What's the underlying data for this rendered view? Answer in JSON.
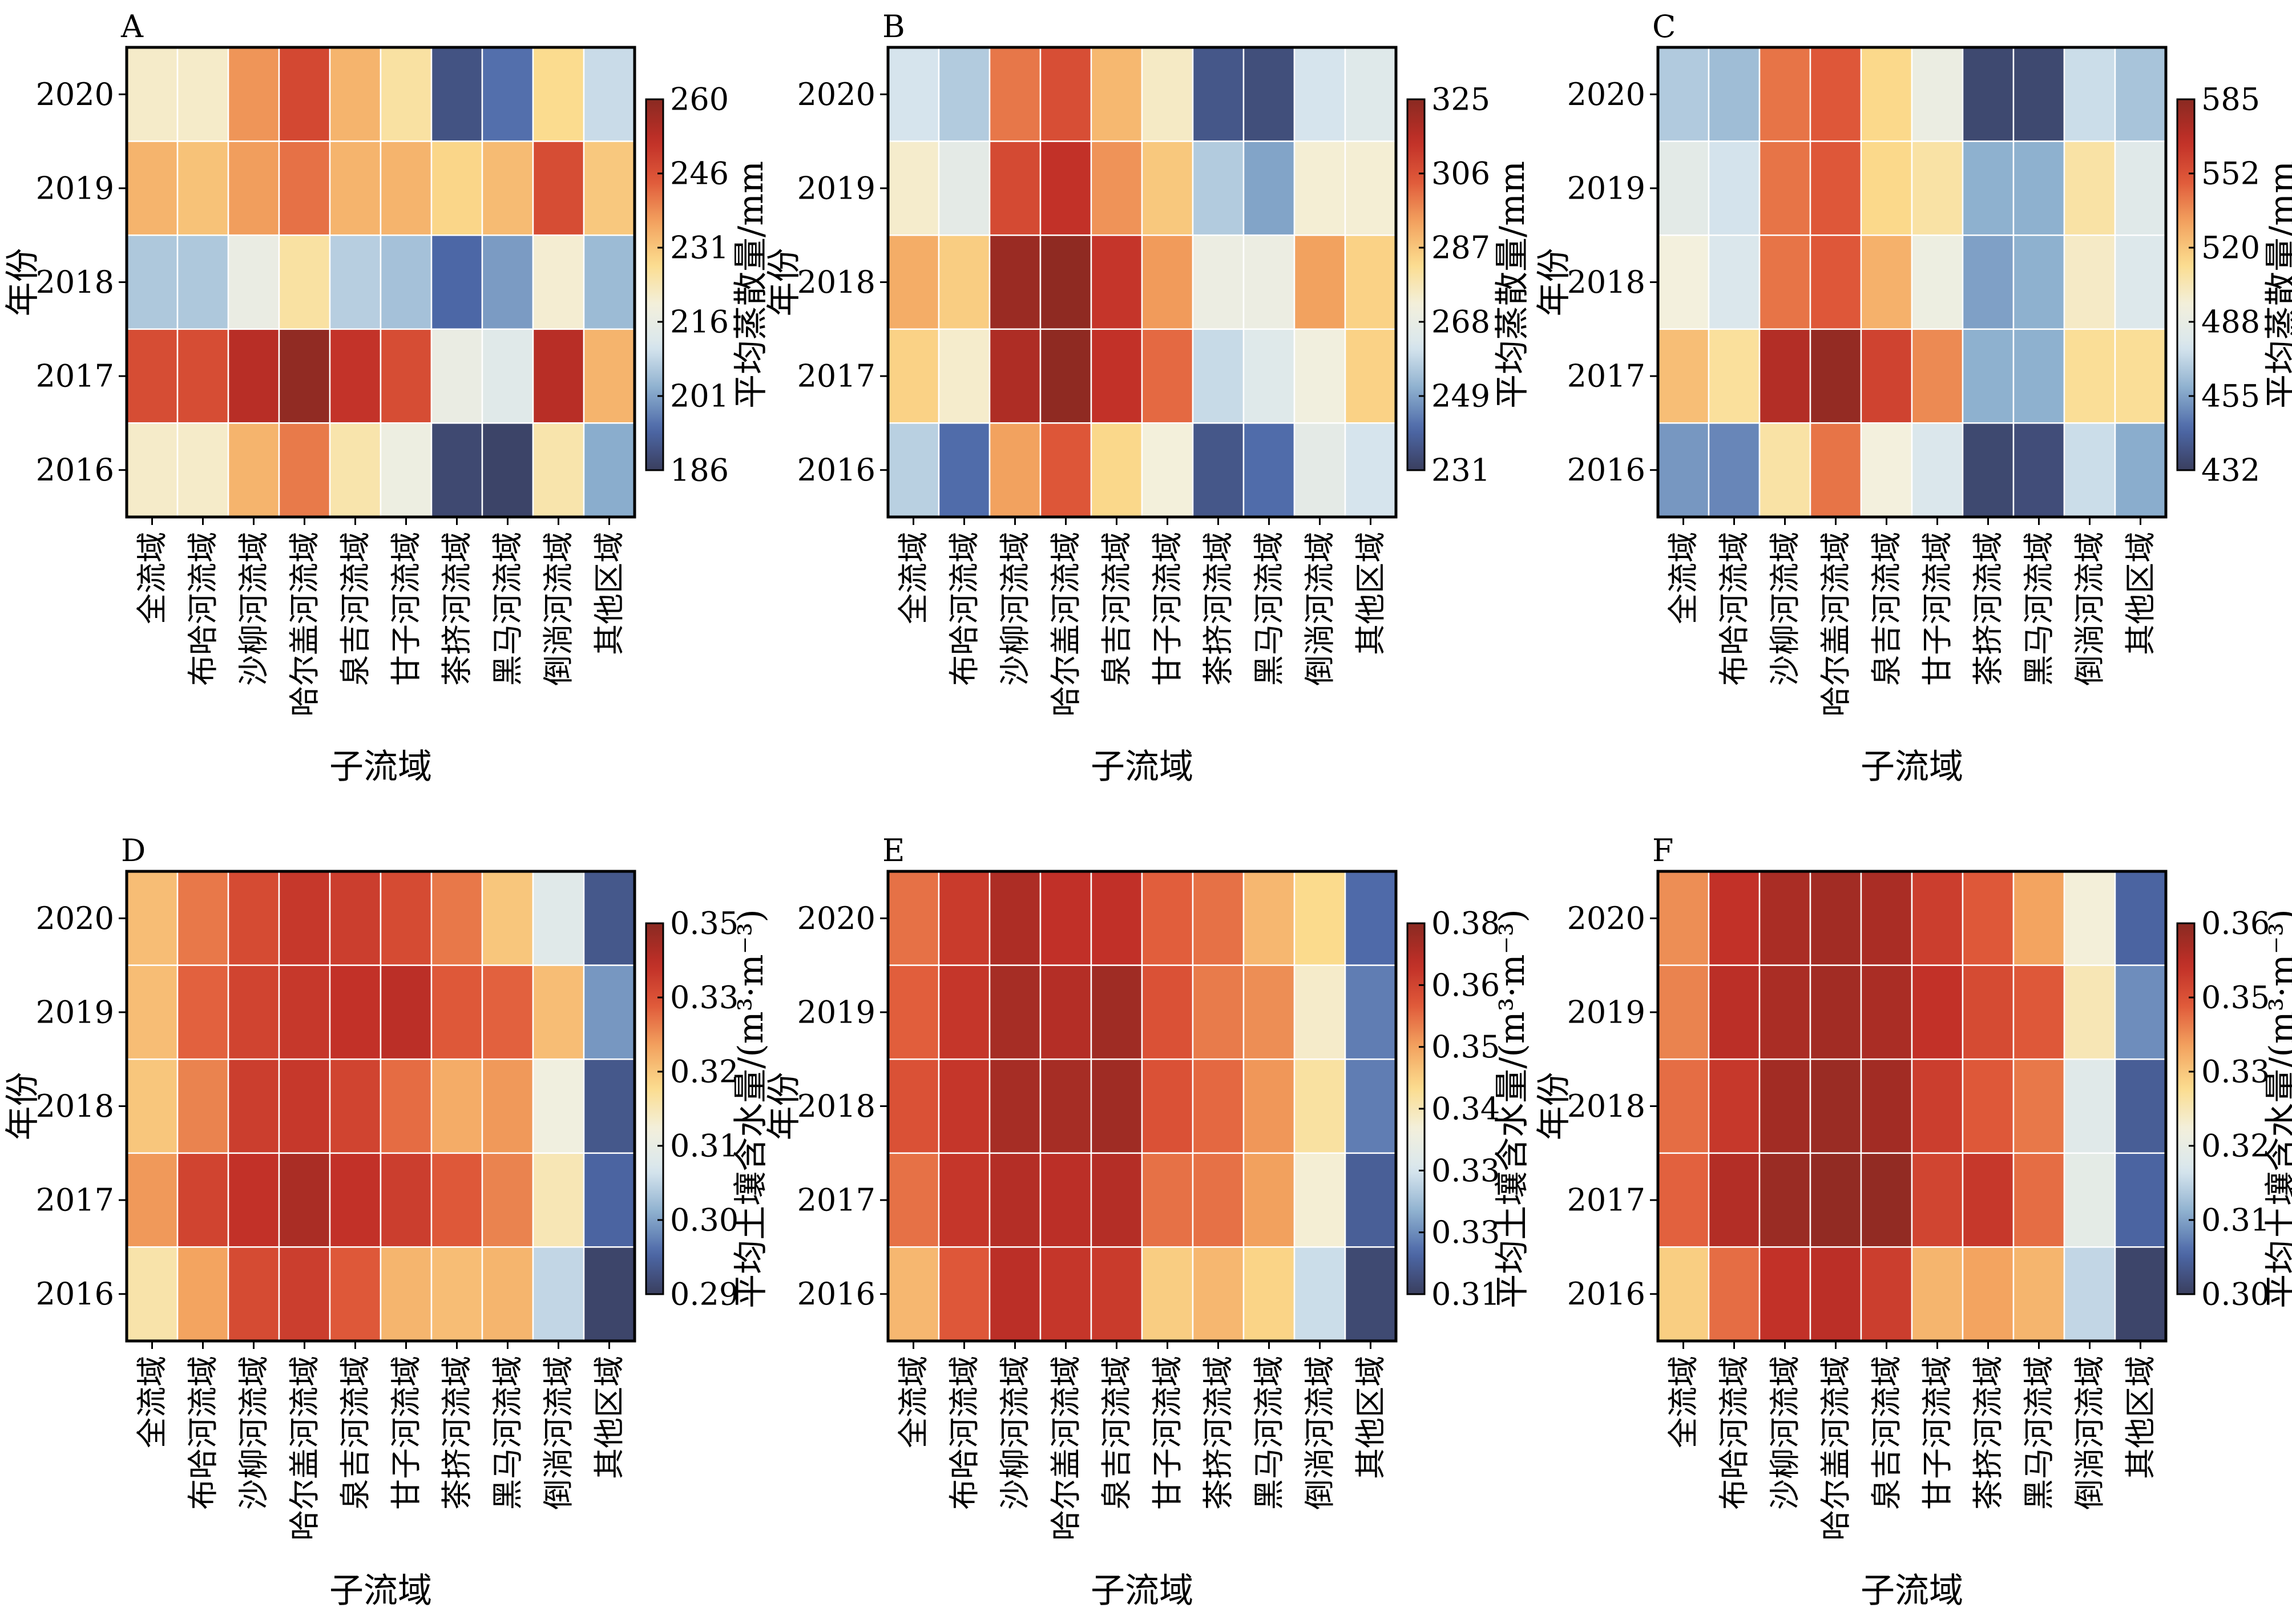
{
  "figure": {
    "ylabel": "年份",
    "xlabel": "子流域",
    "years": [
      "2020",
      "2019",
      "2018",
      "2017",
      "2016"
    ],
    "categories": [
      "全流域",
      "布哈河流域",
      "沙柳河流域",
      "哈尔盖河流域",
      "泉吉河流域",
      "甘子河流域",
      "茶挤河流域",
      "黑马河流域",
      "倒淌河流域",
      "其他区域"
    ],
    "colormap": [
      "#3a3f5f",
      "#4d68a8",
      "#8eb1cf",
      "#d8e6ee",
      "#f3f0dd",
      "#fbdc8e",
      "#f3a460",
      "#e05a3a",
      "#c02f27",
      "#8a2a22"
    ]
  },
  "chart_data": [
    {
      "panel": "A",
      "type": "heatmap",
      "colorbar_label": "平均蒸散量/mm",
      "colorbar_ticks": [
        "186",
        "201",
        "216",
        "231",
        "246",
        "260"
      ],
      "vmin": 186,
      "vmax": 260,
      "rows": [
        "2020",
        "2019",
        "2018",
        "2017",
        "2016"
      ],
      "columns": [
        "全流域",
        "布哈河流域",
        "沙柳河流域",
        "哈尔盖河流域",
        "泉吉河流域",
        "甘子河流域",
        "茶挤河流域",
        "黑马河流域",
        "倒淌河流域",
        "其他区域"
      ],
      "values": [
        [
          221,
          221,
          237,
          247,
          233,
          225,
          190,
          195,
          227,
          209
        ],
        [
          233,
          231,
          236,
          241,
          233,
          233,
          228,
          232,
          246,
          230
        ],
        [
          206,
          206,
          216,
          225,
          207,
          205,
          194,
          200,
          220,
          204
        ],
        [
          246,
          246,
          253,
          259,
          251,
          246,
          216,
          213,
          253,
          233
        ],
        [
          221,
          221,
          233,
          240,
          224,
          217,
          188,
          187,
          224,
          202
        ]
      ]
    },
    {
      "panel": "B",
      "type": "heatmap",
      "colorbar_label": "平均蒸散量/mm",
      "colorbar_ticks": [
        "231",
        "249",
        "268",
        "287",
        "306",
        "325"
      ],
      "vmin": 231,
      "vmax": 325,
      "rows": [
        "2020",
        "2019",
        "2018",
        "2017",
        "2016"
      ],
      "columns": [
        "全流域",
        "布哈河流域",
        "沙柳河流域",
        "哈尔盖河流域",
        "泉吉河流域",
        "甘子河流域",
        "茶挤河流域",
        "黑马河流域",
        "倒淌河流域",
        "其他区域"
      ],
      "values": [
        [
          262,
          257,
          300,
          307,
          290,
          276,
          237,
          235,
          262,
          265
        ],
        [
          275,
          267,
          308,
          314,
          296,
          287,
          257,
          250,
          274,
          274
        ],
        [
          292,
          286,
          322,
          324,
          313,
          295,
          270,
          270,
          294,
          285
        ],
        [
          285,
          275,
          318,
          324,
          314,
          302,
          260,
          265,
          272,
          285
        ],
        [
          258,
          242,
          294,
          305,
          284,
          273,
          237,
          242,
          267,
          262
        ]
      ]
    },
    {
      "panel": "C",
      "type": "heatmap",
      "colorbar_label": "平均蒸散量/mm",
      "colorbar_ticks": [
        "432",
        "455",
        "488",
        "520",
        "552",
        "585"
      ],
      "vmin": 432,
      "vmax": 585,
      "rows": [
        "2020",
        "2019",
        "2018",
        "2017",
        "2016"
      ],
      "columns": [
        "全流域",
        "布哈河流域",
        "沙柳河流域",
        "哈尔盖河流域",
        "泉吉河流域",
        "甘子河流域",
        "茶挤河流域",
        "黑马河流域",
        "倒淌河流域",
        "其他区域"
      ],
      "values": [
        [
          474,
          470,
          545,
          552,
          518,
          495,
          436,
          436,
          480,
          472
        ],
        [
          490,
          482,
          545,
          552,
          518,
          512,
          466,
          466,
          512,
          488
        ],
        [
          500,
          485,
          545,
          552,
          530,
          496,
          462,
          466,
          505,
          486
        ],
        [
          526,
          514,
          572,
          582,
          560,
          540,
          466,
          466,
          515,
          515
        ],
        [
          460,
          456,
          512,
          545,
          500,
          485,
          436,
          438,
          480,
          465
        ]
      ]
    },
    {
      "panel": "D",
      "type": "heatmap",
      "colorbar_label": "平均土壤含水量/(m³·m⁻³)",
      "colorbar_ticks": [
        "0.29",
        "0.30",
        "0.31",
        "0.32",
        "0.33",
        "0.35"
      ],
      "vmin": 0.29,
      "vmax": 0.35,
      "rows": [
        "2020",
        "2019",
        "2018",
        "2017",
        "2016"
      ],
      "columns": [
        "全流域",
        "布哈河流域",
        "沙柳河流域",
        "哈尔盖河流域",
        "泉吉河流域",
        "甘子河流域",
        "茶挤河流域",
        "黑马河流域",
        "倒淌河流域",
        "其他区域"
      ],
      "values": [
        [
          0.327,
          0.334,
          0.339,
          0.342,
          0.341,
          0.339,
          0.334,
          0.326,
          0.312,
          0.294
        ],
        [
          0.327,
          0.336,
          0.34,
          0.342,
          0.343,
          0.344,
          0.337,
          0.336,
          0.327,
          0.301
        ],
        [
          0.326,
          0.333,
          0.341,
          0.342,
          0.34,
          0.335,
          0.329,
          0.331,
          0.316,
          0.294
        ],
        [
          0.331,
          0.34,
          0.343,
          0.346,
          0.343,
          0.341,
          0.337,
          0.333,
          0.32,
          0.296
        ],
        [
          0.321,
          0.33,
          0.339,
          0.341,
          0.337,
          0.328,
          0.327,
          0.328,
          0.308,
          0.291
        ]
      ]
    },
    {
      "panel": "E",
      "type": "heatmap",
      "colorbar_label": "平均土壤含水量/(m³·m⁻³)",
      "colorbar_ticks": [
        "0.31",
        "0.33",
        "0.33",
        "0.34",
        "0.35",
        "0.36",
        "0.38"
      ],
      "vmin": 0.31,
      "vmax": 0.38,
      "rows": [
        "2020",
        "2019",
        "2018",
        "2017",
        "2016"
      ],
      "columns": [
        "全流域",
        "布哈河流域",
        "沙柳河流域",
        "哈尔盖河流域",
        "泉吉河流域",
        "甘子河流域",
        "茶挤河流域",
        "黑马河流域",
        "倒淌河流域",
        "其他区域"
      ],
      "values": [
        [
          0.362,
          0.37,
          0.375,
          0.372,
          0.372,
          0.364,
          0.362,
          0.354,
          0.349,
          0.318
        ],
        [
          0.364,
          0.371,
          0.376,
          0.374,
          0.377,
          0.366,
          0.361,
          0.359,
          0.343,
          0.32
        ],
        [
          0.366,
          0.371,
          0.376,
          0.376,
          0.377,
          0.366,
          0.363,
          0.358,
          0.347,
          0.32
        ],
        [
          0.362,
          0.371,
          0.374,
          0.373,
          0.374,
          0.362,
          0.362,
          0.357,
          0.342,
          0.316
        ],
        [
          0.354,
          0.365,
          0.373,
          0.371,
          0.37,
          0.351,
          0.354,
          0.35,
          0.332,
          0.312
        ]
      ]
    },
    {
      "panel": "F",
      "type": "heatmap",
      "colorbar_label": "平均土壤含水量/(m³·m⁻³)",
      "colorbar_ticks": [
        "0.30",
        "0.31",
        "0.32",
        "0.33",
        "0.35",
        "0.36"
      ],
      "vmin": 0.3,
      "vmax": 0.36,
      "rows": [
        "2020",
        "2019",
        "2018",
        "2017",
        "2016"
      ],
      "columns": [
        "全流域",
        "布哈河流域",
        "沙柳河流域",
        "哈尔盖河流域",
        "泉吉河流域",
        "甘子河流域",
        "茶挤河流域",
        "黑马河流域",
        "倒淌河流域",
        "其他区域"
      ],
      "values": [
        [
          0.342,
          0.353,
          0.356,
          0.357,
          0.356,
          0.351,
          0.347,
          0.34,
          0.327,
          0.306
        ],
        [
          0.343,
          0.354,
          0.356,
          0.357,
          0.356,
          0.353,
          0.349,
          0.347,
          0.33,
          0.31
        ],
        [
          0.345,
          0.352,
          0.357,
          0.358,
          0.357,
          0.351,
          0.347,
          0.344,
          0.322,
          0.305
        ],
        [
          0.346,
          0.355,
          0.358,
          0.359,
          0.359,
          0.35,
          0.352,
          0.345,
          0.323,
          0.306
        ],
        [
          0.335,
          0.345,
          0.353,
          0.354,
          0.351,
          0.338,
          0.34,
          0.338,
          0.318,
          0.301
        ]
      ]
    }
  ]
}
